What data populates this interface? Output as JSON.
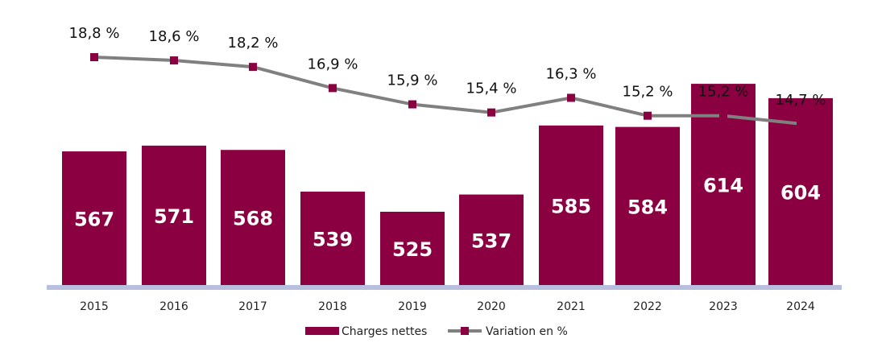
{
  "chart_data": {
    "type": "bar",
    "categories": [
      "2015",
      "2016",
      "2017",
      "2018",
      "2019",
      "2020",
      "2021",
      "2022",
      "2023",
      "2024"
    ],
    "series": [
      {
        "name": "Charges nettes",
        "type": "bar",
        "values": [
          567,
          571,
          568,
          539,
          525,
          537,
          585,
          584,
          614,
          604
        ],
        "labels": [
          "567",
          "571",
          "568",
          "539",
          "525",
          "537",
          "585",
          "584",
          "614",
          "604"
        ],
        "color": "#8A0040"
      },
      {
        "name": "Variation en %",
        "type": "line",
        "values": [
          18.8,
          18.6,
          18.2,
          16.9,
          15.9,
          15.4,
          16.3,
          15.2,
          15.2,
          14.7
        ],
        "labels": [
          "18,8 %",
          "18,6 %",
          "18,2 %",
          "16,9 %",
          "15,9 %",
          "15,4 %",
          "16,3 %",
          "15,2 %",
          "15,2 %",
          "14,7 %"
        ],
        "color": "#808080",
        "marker_color": "#8A0040"
      }
    ],
    "title": "",
    "xlabel": "",
    "ylabel": "",
    "legend_position": "bottom-center",
    "grid": false,
    "axis_color": "#B8BEDD"
  }
}
